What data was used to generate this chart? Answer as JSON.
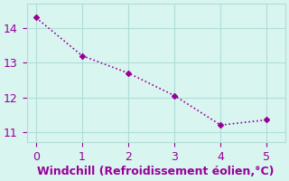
{
  "x": [
    0,
    1,
    2,
    3,
    4,
    5
  ],
  "y": [
    14.3,
    13.2,
    12.7,
    12.05,
    11.2,
    11.35
  ],
  "line_color": "#990099",
  "bg_color": "#d8f5f0",
  "grid_color": "#b0ddd8",
  "xlabel": "Windchill (Refroidissement éolien,°C)",
  "xlabel_color": "#990099",
  "tick_color": "#990099",
  "xlim": [
    -0.2,
    5.4
  ],
  "ylim": [
    10.7,
    14.7
  ],
  "yticks": [
    11,
    12,
    13,
    14
  ],
  "xticks": [
    0,
    1,
    2,
    3,
    4,
    5
  ],
  "xlabel_fontsize": 9,
  "tick_fontsize": 9
}
